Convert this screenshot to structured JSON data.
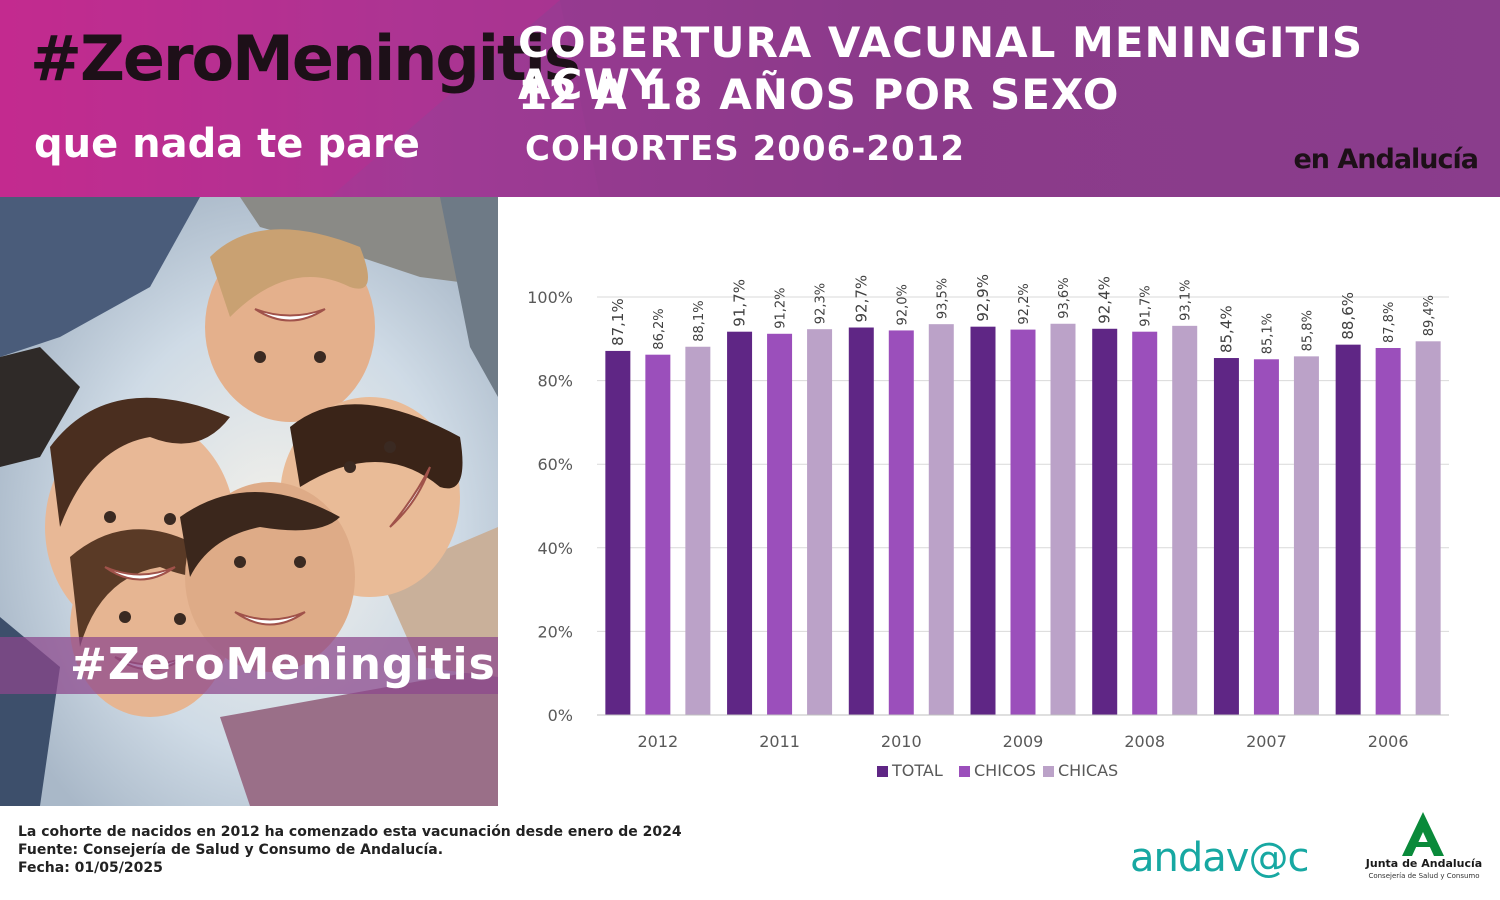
{
  "header": {
    "hashtag": "#ZeroMeningitis",
    "tagline": "que nada te pare",
    "title_line_1": "COBERTURA VACUNAL MENINGITIS ACWY",
    "title_line_2": "12 A 18 AÑOS POR SEXO",
    "subtitle": "COHORTES  2006-2012",
    "region": "en Andalucía"
  },
  "photo": {
    "overlay_hashtag": "#ZeroMeningitis"
  },
  "colors": {
    "total": "#5f2685",
    "chicos": "#9b4fbb",
    "chicas": "#bba2c8",
    "header_bg": "#8b3a8a",
    "andavac": "#17a8a2"
  },
  "chart_data": {
    "type": "bar",
    "categories": [
      "2012",
      "2011",
      "2010",
      "2009",
      "2008",
      "2007",
      "2006"
    ],
    "series": [
      {
        "name": "TOTAL",
        "values": [
          87.1,
          91.7,
          92.7,
          92.9,
          92.4,
          85.4,
          88.6
        ],
        "labels": [
          "87,1%",
          "91,7%",
          "92,7%",
          "92,9%",
          "92,4%",
          "85,4%",
          "88,6%"
        ]
      },
      {
        "name": "CHICOS",
        "values": [
          86.2,
          91.2,
          92.0,
          92.2,
          91.7,
          85.1,
          87.8
        ],
        "labels": [
          "86,2%",
          "91,2%",
          "92,0%",
          "92,2%",
          "91,7%",
          "85,1%",
          "87,8%"
        ]
      },
      {
        "name": "CHICAS",
        "values": [
          88.1,
          92.3,
          93.5,
          93.6,
          93.1,
          85.8,
          89.4
        ],
        "labels": [
          "88,1%",
          "92,3%",
          "93,5%",
          "93,6%",
          "93,1%",
          "85,8%",
          "89,4%"
        ]
      }
    ],
    "y_ticks": [
      "0%",
      "20%",
      "40%",
      "60%",
      "80%",
      "100%"
    ],
    "ylim": [
      0,
      100
    ],
    "grid": true,
    "legend_position": "bottom",
    "xlabel": "",
    "ylabel": ""
  },
  "footer": {
    "note_1": "La cohorte de nacidos en 2012 ha comenzado esta vacunación desde enero de 2024",
    "note_2": "Fuente: Consejería de Salud y Consumo de Andalucía.",
    "note_3": "Fecha: 01/05/2025",
    "andavac_logo": "andav@c",
    "junta_name": "Junta de Andalucía",
    "junta_dept": "Consejería de Salud y Consumo"
  }
}
